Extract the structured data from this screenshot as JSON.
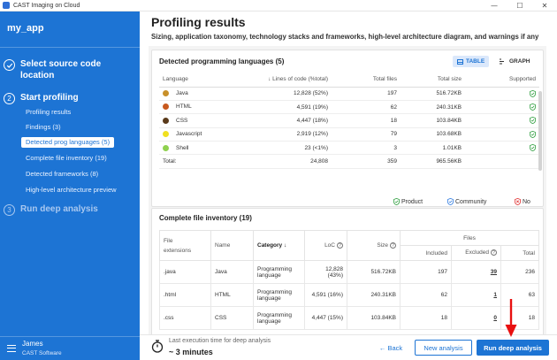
{
  "window": {
    "title": "CAST Imaging on Cloud",
    "minimize": "—",
    "maximize": "☐",
    "close": "✕"
  },
  "sidebar": {
    "app_name": "my_app",
    "steps": [
      {
        "number": "",
        "label_line1": "Select source code",
        "label_line2": "location"
      },
      {
        "number": "2",
        "label": "Start profiling"
      },
      {
        "number": "3",
        "label": "Run deep analysis"
      }
    ],
    "sub_items": [
      {
        "label": "Profiling results"
      },
      {
        "label": "Findings (3)"
      },
      {
        "label": "Detected prog languages (5)"
      },
      {
        "label": "Complete file inventory (19)"
      },
      {
        "label": "Detected frameworks (8)"
      },
      {
        "label": "High-level architecture preview"
      }
    ],
    "user": {
      "name": "James",
      "org": "CAST Software"
    }
  },
  "main": {
    "title": "Profiling results",
    "subtitle": "Sizing, application taxonomy, technology stacks and frameworks, high-level architecture diagram, and warnings if any"
  },
  "languages_card": {
    "title": "Detected programming languages (5)",
    "toggle_table": "TABLE",
    "toggle_graph": "GRAPH",
    "headers": {
      "language": "Language",
      "loc": "Lines of code (%total)",
      "files": "Total files",
      "size": "Total size",
      "supported": "Supported"
    },
    "rows": [
      {
        "name": "Java",
        "color": "#c8902a",
        "loc": "12,828 (52%)",
        "files": "197",
        "size": "516.72KB"
      },
      {
        "name": "HTML",
        "color": "#c8591e",
        "loc": "4,591 (19%)",
        "files": "62",
        "size": "240.31KB"
      },
      {
        "name": "CSS",
        "color": "#5a3a1a",
        "loc": "4,447 (18%)",
        "files": "18",
        "size": "103.84KB"
      },
      {
        "name": "Javascript",
        "color": "#f0e020",
        "loc": "2,919 (12%)",
        "files": "79",
        "size": "103.68KB"
      },
      {
        "name": "Shell",
        "color": "#8fd14f",
        "loc": "23 (<1%)",
        "files": "3",
        "size": "1.01KB"
      }
    ],
    "total": {
      "label": "Total:",
      "loc": "24,808",
      "files": "359",
      "size": "965.56KB"
    },
    "legend": {
      "product": "Product",
      "community": "Community",
      "no": "No"
    }
  },
  "inventory_card": {
    "title": "Complete file inventory (19)",
    "headers": {
      "ext_line1": "File",
      "ext_line2": "extensions",
      "name": "Name",
      "category": "Category",
      "loc": "LoC",
      "size": "Size",
      "files": "Files",
      "included": "Included",
      "excluded": "Excluded",
      "total": "Total"
    },
    "rows": [
      {
        "ext": ".java",
        "name": "Java",
        "cat1": "Programming",
        "cat2": "language",
        "loc1": "12,828",
        "loc2": "(43%)",
        "size": "516.72KB",
        "included": "197",
        "excluded": "39",
        "total": "236"
      },
      {
        "ext": ".html",
        "name": "HTML",
        "cat1": "Programming",
        "cat2": "language",
        "loc1": "4,591 (16%)",
        "loc2": "",
        "size": "240.31KB",
        "included": "62",
        "excluded": "1",
        "total": "63"
      },
      {
        "ext": ".css",
        "name": "CSS",
        "cat1": "Programming",
        "cat2": "language",
        "loc1": "4,447 (15%)",
        "loc2": "",
        "size": "103.84KB",
        "included": "18",
        "excluded": "0",
        "total": "18"
      }
    ]
  },
  "footer": {
    "exec_label": "Last execution time for deep analysis",
    "exec_value": "~ 3 minutes",
    "back": "Back",
    "new_analysis": "New analysis",
    "run": "Run deep analysis"
  },
  "colors": {
    "accent": "#1d74d4",
    "supported": "#2e9e3e",
    "community": "#2f7be0",
    "no": "#e03131"
  }
}
